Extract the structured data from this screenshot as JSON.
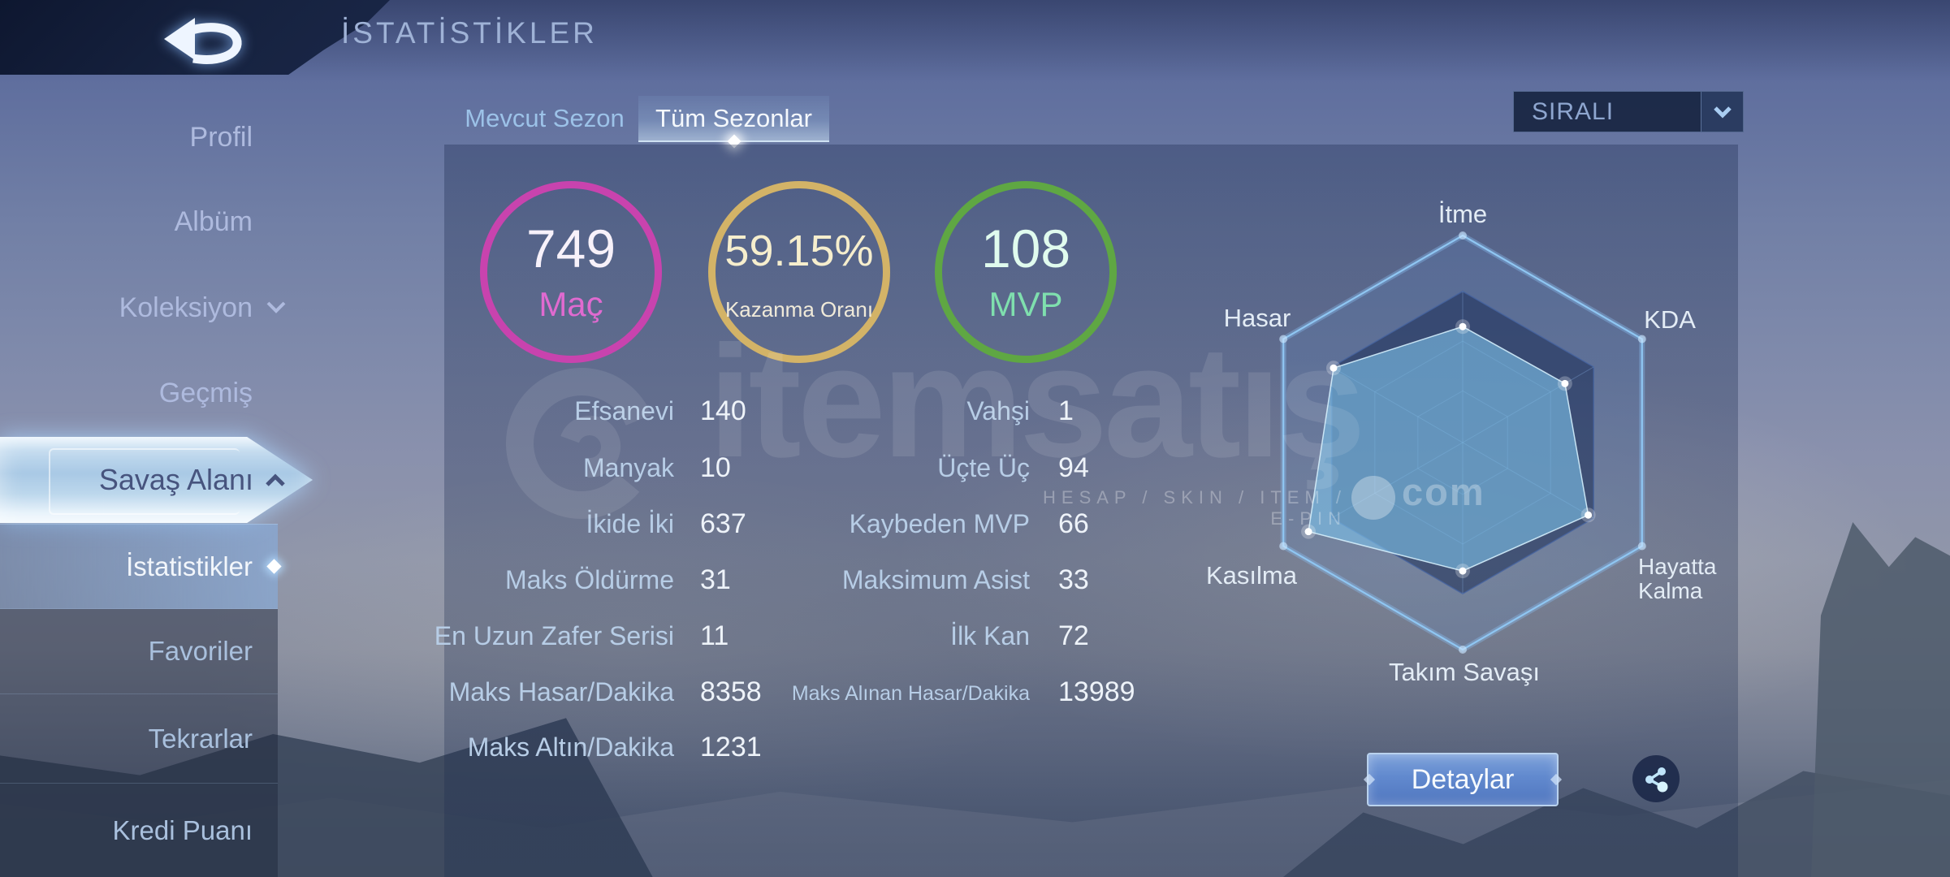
{
  "header": {
    "title": "İSTATİSTİKLER"
  },
  "sidebar": {
    "items": [
      {
        "label": "Profil"
      },
      {
        "label": "Albüm"
      },
      {
        "label": "Koleksiyon",
        "has_chevron": true
      },
      {
        "label": "Geçmiş"
      }
    ],
    "battlefield": {
      "label": "Savaş Alanı",
      "expanded": true
    },
    "subitems": [
      {
        "label": "İstatistikler",
        "selected": true
      },
      {
        "label": "Favoriler"
      },
      {
        "label": "Tekrarlar"
      },
      {
        "label": "Kredi Puanı"
      }
    ]
  },
  "toolbar": {
    "tabs": [
      {
        "label": "Mevcut Sezon",
        "active": false
      },
      {
        "label": "Tüm Sezonlar",
        "active": true
      }
    ],
    "sort_dropdown": {
      "value": "SIRALI"
    }
  },
  "summary": [
    {
      "value": "749",
      "label": "Maç",
      "ring_color": "#c843ae",
      "value_color": "#f7f1fa",
      "label_color": "#e06ad0",
      "fill": "rgba(122,92,166,0.36)"
    },
    {
      "value": "59.15%",
      "label": "Kazanma Oranı",
      "ring_color": "#d3b367",
      "value_color": "#f6eecd",
      "label_color": "#f0ead9",
      "fill": "rgba(140,135,112,0.18)"
    },
    {
      "value": "108",
      "label": "MVP",
      "ring_color": "#5fa743",
      "value_color": "#e0fbee",
      "label_color": "#7fdfae",
      "fill": "rgba(108,158,120,0.16)"
    }
  ],
  "stats": {
    "left": [
      {
        "label": "Efsanevi",
        "value": "140"
      },
      {
        "label": "Manyak",
        "value": "10"
      },
      {
        "label": "İkide İki",
        "value": "637"
      },
      {
        "label": "Maks Öldürme",
        "value": "31"
      },
      {
        "label": "En Uzun Zafer Serisi",
        "value": "11"
      },
      {
        "label": "Maks Hasar/Dakika",
        "value": "8358"
      },
      {
        "label": "Maks Altın/Dakika",
        "value": "1231"
      }
    ],
    "right": [
      {
        "label": "Vahşi",
        "value": "1"
      },
      {
        "label": "Üçte Üç",
        "value": "94"
      },
      {
        "label": "Kaybeden MVP",
        "value": "66"
      },
      {
        "label": "Maksimum Asist",
        "value": "33"
      },
      {
        "label": "İlk Kan",
        "value": "72"
      },
      {
        "label": "Maks Alınan Hasar/Dakika",
        "value": "13989"
      }
    ]
  },
  "chart_data": {
    "type": "radar",
    "categories": [
      "İtme",
      "KDA",
      "Hayatta Kalma",
      "Takım Savaşı",
      "Kasılma",
      "Hasar"
    ],
    "values": [
      56,
      57,
      70,
      62,
      86,
      72
    ],
    "max": 100,
    "rings": [
      25,
      49,
      73,
      100
    ],
    "fill_color": "#7cc0e8",
    "dot_color": "#ffffff",
    "legend": "none"
  },
  "actions": {
    "details": "Detaylar"
  },
  "watermark": {
    "brand": "itemsatış",
    "tagline": "HESAP / SKIN / ITEM / E-PIN",
    "suffix": "com"
  }
}
